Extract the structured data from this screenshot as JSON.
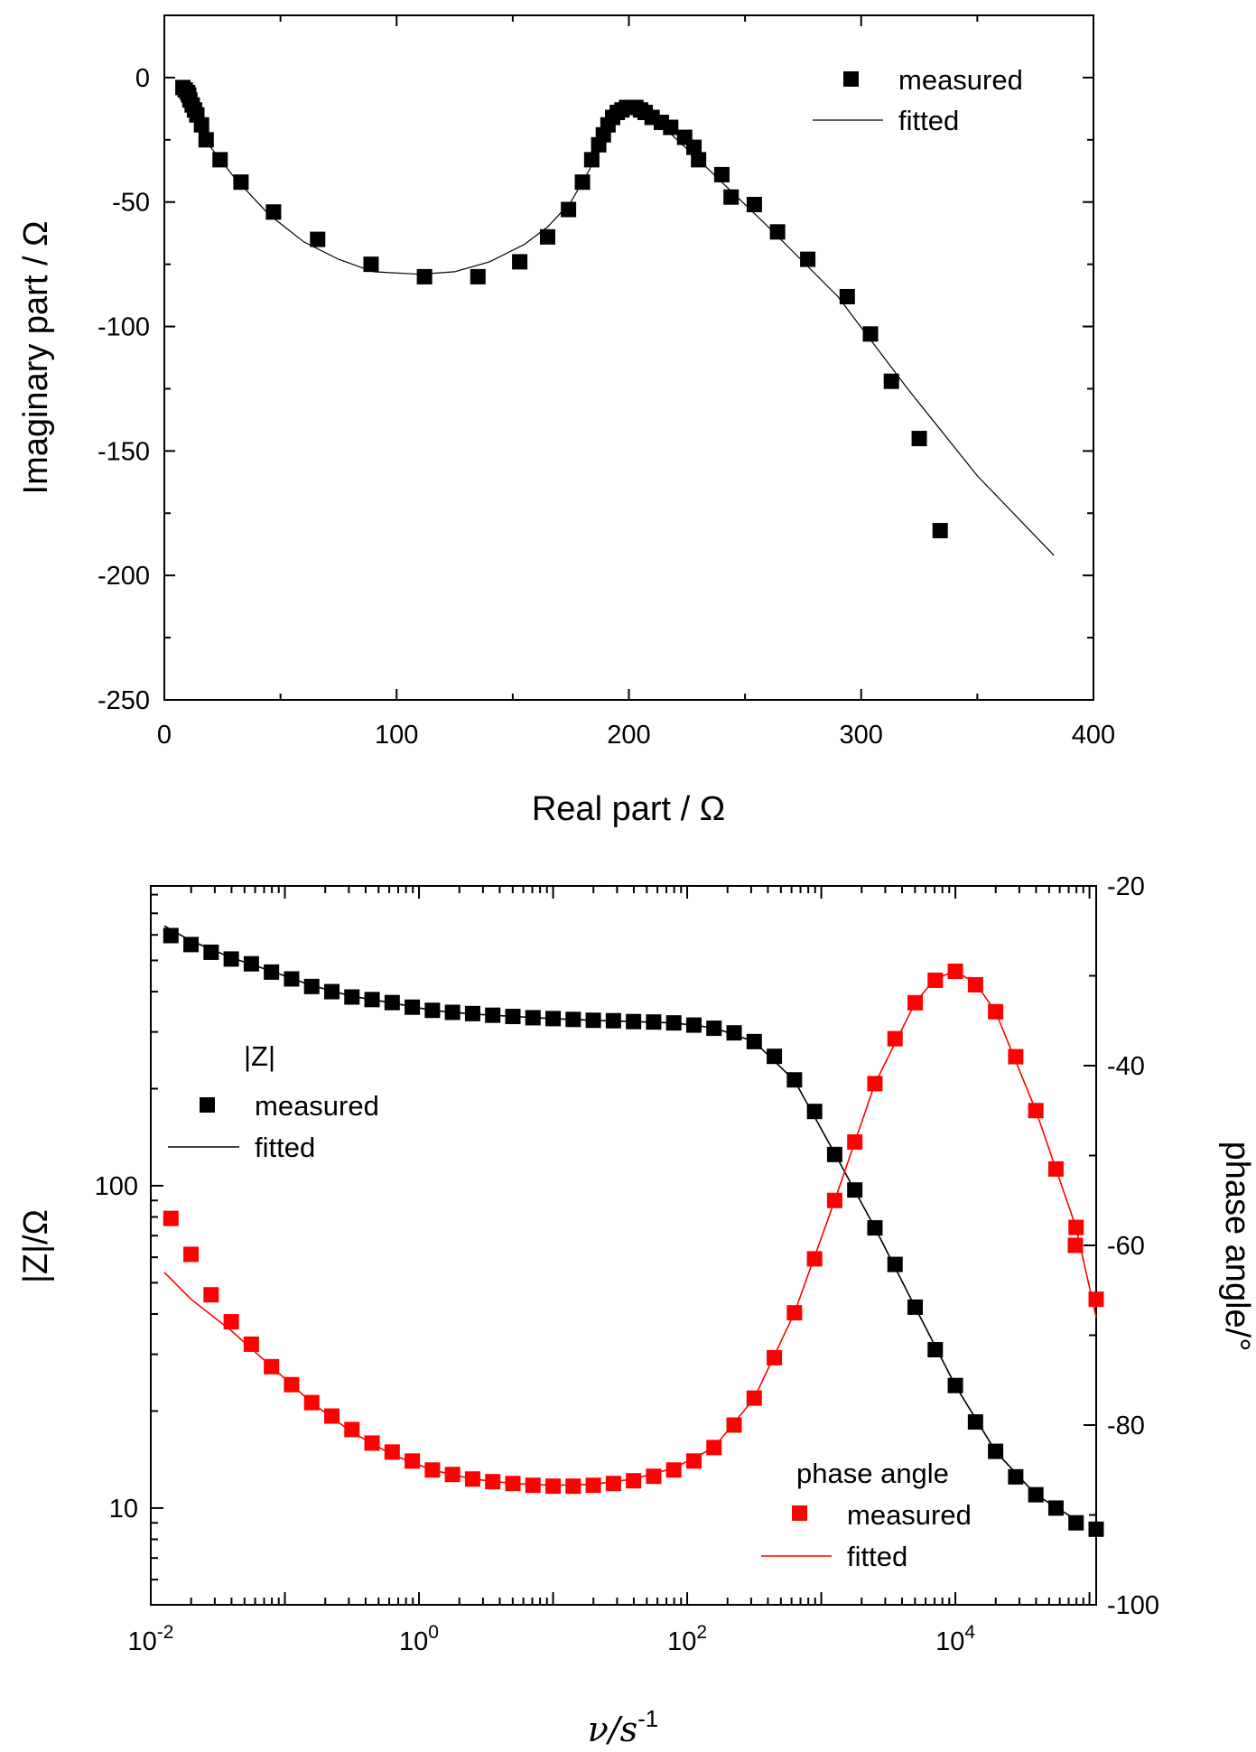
{
  "chart_data": [
    {
      "type": "scatter",
      "name": "nyquist",
      "xlabel": "Real part / Ω",
      "ylabel": "Imaginary part / Ω",
      "xlim": [
        0,
        400
      ],
      "ylim": [
        -250,
        25
      ],
      "xticks": [
        0,
        100,
        200,
        300,
        400
      ],
      "xtick_labels": [
        "0",
        "100",
        "200",
        "300",
        "400"
      ],
      "yticks": [
        0,
        -50,
        -100,
        -150,
        -200,
        -250
      ],
      "ytick_labels": [
        "0",
        "-50",
        "-100",
        "-150",
        "-200",
        "-250"
      ],
      "legend_position": "top-right",
      "legend": {
        "measured": "measured",
        "fitted": "fitted"
      },
      "series": [
        {
          "name": "measured",
          "kind": "markers",
          "color": "#000000",
          "points": [
            [
              8,
              -4
            ],
            [
              9,
              -5
            ],
            [
              10,
              -6
            ],
            [
              10.5,
              -7
            ],
            [
              11,
              -9
            ],
            [
              12,
              -11
            ],
            [
              13,
              -13
            ],
            [
              14,
              -15
            ],
            [
              16,
              -19
            ],
            [
              18,
              -25
            ],
            [
              24,
              -33
            ],
            [
              33,
              -42
            ],
            [
              47,
              -54
            ],
            [
              66,
              -65
            ],
            [
              89,
              -75
            ],
            [
              112,
              -80
            ],
            [
              135,
              -80
            ],
            [
              153,
              -74
            ],
            [
              165,
              -64
            ],
            [
              174,
              -53
            ],
            [
              180,
              -42
            ],
            [
              184,
              -33
            ],
            [
              187,
              -27
            ],
            [
              189,
              -23
            ],
            [
              191,
              -19
            ],
            [
              193,
              -16
            ],
            [
              195,
              -14
            ],
            [
              197,
              -13
            ],
            [
              199,
              -12
            ],
            [
              201,
              -12
            ],
            [
              203,
              -12
            ],
            [
              205,
              -13
            ],
            [
              207,
              -14
            ],
            [
              210,
              -16
            ],
            [
              214,
              -18
            ],
            [
              218,
              -20
            ],
            [
              224,
              -24
            ],
            [
              228,
              -28
            ],
            [
              230,
              -33
            ],
            [
              240,
              -39
            ],
            [
              244,
              -48
            ],
            [
              254,
              -51
            ],
            [
              264,
              -62
            ],
            [
              277,
              -73
            ],
            [
              294,
              -88
            ],
            [
              304,
              -103
            ],
            [
              313,
              -122
            ],
            [
              325,
              -145
            ],
            [
              334,
              -182
            ]
          ]
        },
        {
          "name": "fitted",
          "kind": "line",
          "color": "#000000",
          "points": [
            [
              8,
              -4
            ],
            [
              10,
              -10
            ],
            [
              14,
              -18
            ],
            [
              20,
              -28
            ],
            [
              30,
              -40
            ],
            [
              45,
              -55
            ],
            [
              60,
              -66
            ],
            [
              75,
              -73
            ],
            [
              90,
              -78
            ],
            [
              110,
              -79
            ],
            [
              125,
              -78
            ],
            [
              140,
              -74
            ],
            [
              155,
              -67
            ],
            [
              165,
              -60
            ],
            [
              175,
              -50
            ],
            [
              183,
              -37
            ],
            [
              188,
              -27
            ],
            [
              193,
              -19
            ],
            [
              197,
              -14
            ],
            [
              200,
              -13
            ],
            [
              206,
              -14
            ],
            [
              215,
              -20
            ],
            [
              230,
              -33
            ],
            [
              260,
              -60
            ],
            [
              290,
              -88
            ],
            [
              320,
              -125
            ],
            [
              350,
              -160
            ],
            [
              383,
              -192
            ]
          ]
        }
      ]
    },
    {
      "type": "scatter",
      "name": "bode",
      "xlabel": "ν/s",
      "xlabel_superscript": "-1",
      "ylabel": "|Z|/Ω",
      "y2label": "phase angle/°",
      "x_scale": "log",
      "xlim_log10": [
        -2,
        5.05
      ],
      "y_scale": "log",
      "ylim_log10": [
        0.7,
        2.93
      ],
      "y2lim": [
        -100,
        -20
      ],
      "xticks_log10": [
        -2,
        0,
        2,
        4
      ],
      "xtick_labels": [
        {
          "base": "10",
          "exp": "-2"
        },
        {
          "base": "10",
          "exp": "0"
        },
        {
          "base": "10",
          "exp": "2"
        },
        {
          "base": "10",
          "exp": "4"
        }
      ],
      "yticks_log10": [
        1,
        2
      ],
      "ytick_labels": [
        "10",
        "100"
      ],
      "y2ticks": [
        -20,
        -40,
        -60,
        -80,
        -100
      ],
      "y2tick_labels": [
        "-20",
        "-40",
        "-60",
        "-80",
        "-100"
      ],
      "legend_z": {
        "title": "|Z|",
        "measured": "measured",
        "fitted": "fitted",
        "position": "middle-left"
      },
      "legend_phase": {
        "title": "phase angle",
        "measured": "measured",
        "fitted": "fitted",
        "position": "bottom-right"
      },
      "series": [
        {
          "name": "|Z| measured",
          "axis": "left",
          "kind": "markers",
          "color": "#000000",
          "points_log10x_z": [
            [
              -1.85,
              597
            ],
            [
              -1.7,
              560
            ],
            [
              -1.55,
              530
            ],
            [
              -1.4,
              505
            ],
            [
              -1.25,
              488
            ],
            [
              -1.1,
              460
            ],
            [
              -0.95,
              438
            ],
            [
              -0.8,
              415
            ],
            [
              -0.65,
              400
            ],
            [
              -0.5,
              385
            ],
            [
              -0.35,
              378
            ],
            [
              -0.2,
              370
            ],
            [
              -0.05,
              358
            ],
            [
              0.1,
              350
            ],
            [
              0.25,
              345
            ],
            [
              0.4,
              342
            ],
            [
              0.55,
              338
            ],
            [
              0.7,
              335
            ],
            [
              0.85,
              332
            ],
            [
              1.0,
              330
            ],
            [
              1.15,
              328
            ],
            [
              1.3,
              326
            ],
            [
              1.45,
              325
            ],
            [
              1.6,
              323
            ],
            [
              1.75,
              322
            ],
            [
              1.9,
              320
            ],
            [
              2.05,
              315
            ],
            [
              2.2,
              308
            ],
            [
              2.35,
              298
            ],
            [
              2.5,
              280
            ],
            [
              2.65,
              252
            ],
            [
              2.8,
              213
            ],
            [
              2.95,
              170
            ],
            [
              3.1,
              125
            ],
            [
              3.25,
              97
            ],
            [
              3.4,
              74
            ],
            [
              3.55,
              57
            ],
            [
              3.7,
              42
            ],
            [
              3.85,
              31
            ],
            [
              4.0,
              24
            ],
            [
              4.15,
              18.5
            ],
            [
              4.3,
              15
            ],
            [
              4.45,
              12.5
            ],
            [
              4.6,
              11
            ],
            [
              4.75,
              10
            ],
            [
              4.9,
              9
            ]
          ]
        },
        {
          "name": "|Z| fitted",
          "axis": "left",
          "kind": "line",
          "color": "#000000",
          "points_log10x_z": [
            [
              -1.9,
              640
            ],
            [
              -1.7,
              575
            ],
            [
              -1.4,
              510
            ],
            [
              -1.1,
              463
            ],
            [
              -0.8,
              418
            ],
            [
              -0.5,
              387
            ],
            [
              -0.2,
              369
            ],
            [
              0.1,
              350
            ],
            [
              0.4,
              341
            ],
            [
              0.7,
              335
            ],
            [
              1.0,
              330
            ],
            [
              1.3,
              326
            ],
            [
              1.6,
              323
            ],
            [
              1.9,
              320
            ],
            [
              2.2,
              309
            ],
            [
              2.5,
              280
            ],
            [
              2.8,
              212
            ],
            [
              3.1,
              126
            ],
            [
              3.4,
              74
            ],
            [
              3.7,
              42
            ],
            [
              4.0,
              24
            ],
            [
              4.3,
              15
            ],
            [
              4.6,
              11
            ],
            [
              4.9,
              9.2
            ]
          ]
        },
        {
          "name": "phase measured",
          "axis": "right",
          "kind": "markers",
          "color": "#ff0000",
          "points_log10x_deg": [
            [
              -1.85,
              -57
            ],
            [
              -1.7,
              -61
            ],
            [
              -1.55,
              -65.5
            ],
            [
              -1.4,
              -68.5
            ],
            [
              -1.25,
              -71
            ],
            [
              -1.1,
              -73.5
            ],
            [
              -0.95,
              -75.5
            ],
            [
              -0.8,
              -77.5
            ],
            [
              -0.65,
              -79
            ],
            [
              -0.5,
              -80.5
            ],
            [
              -0.35,
              -82
            ],
            [
              -0.2,
              -83
            ],
            [
              -0.05,
              -84
            ],
            [
              0.1,
              -85
            ],
            [
              0.25,
              -85.5
            ],
            [
              0.4,
              -86
            ],
            [
              0.55,
              -86.3
            ],
            [
              0.7,
              -86.5
            ],
            [
              0.85,
              -86.7
            ],
            [
              1.0,
              -86.8
            ],
            [
              1.15,
              -86.8
            ],
            [
              1.3,
              -86.7
            ],
            [
              1.45,
              -86.5
            ],
            [
              1.6,
              -86.2
            ],
            [
              1.75,
              -85.7
            ],
            [
              1.9,
              -85
            ],
            [
              2.05,
              -84
            ],
            [
              2.2,
              -82.5
            ],
            [
              2.35,
              -80
            ],
            [
              2.5,
              -77
            ],
            [
              2.65,
              -72.5
            ],
            [
              2.8,
              -67.5
            ],
            [
              2.95,
              -61.5
            ],
            [
              3.1,
              -55
            ],
            [
              3.25,
              -48.5
            ],
            [
              3.4,
              -42
            ],
            [
              3.55,
              -37
            ],
            [
              3.7,
              -33
            ],
            [
              3.85,
              -30.5
            ],
            [
              4.0,
              -29.5
            ],
            [
              4.15,
              -31
            ],
            [
              4.3,
              -34
            ],
            [
              4.45,
              -39
            ],
            [
              4.6,
              -45
            ],
            [
              4.75,
              -51.5
            ],
            [
              4.9,
              -58
            ]
          ]
        },
        {
          "name": "phase fitted",
          "axis": "right",
          "kind": "line",
          "color": "#ff0000",
          "points_log10x_deg": [
            [
              -1.9,
              -63
            ],
            [
              -1.7,
              -66
            ],
            [
              -1.4,
              -69.5
            ],
            [
              -1.1,
              -73.5
            ],
            [
              -0.8,
              -77.5
            ],
            [
              -0.5,
              -80.8
            ],
            [
              -0.2,
              -83.3
            ],
            [
              0.1,
              -85
            ],
            [
              0.4,
              -86
            ],
            [
              0.7,
              -86.5
            ],
            [
              1.0,
              -86.7
            ],
            [
              1.3,
              -86.6
            ],
            [
              1.6,
              -86
            ],
            [
              1.9,
              -84.8
            ],
            [
              2.2,
              -82.5
            ],
            [
              2.5,
              -77
            ],
            [
              2.8,
              -67.5
            ],
            [
              3.1,
              -55
            ],
            [
              3.4,
              -42
            ],
            [
              3.7,
              -33
            ],
            [
              3.85,
              -30.3
            ],
            [
              4.0,
              -29.5
            ],
            [
              4.15,
              -30.8
            ],
            [
              4.3,
              -34
            ],
            [
              4.6,
              -45
            ],
            [
              4.9,
              -58
            ],
            [
              5.05,
              -68
            ]
          ]
        },
        {
          "name": "phase measured (overflow)",
          "axis": "right",
          "kind": "markers",
          "color": "#ff0000",
          "points_log10x_deg": [
            [
              5.05,
              -60
            ],
            [
              5.2,
              -66
            ]
          ],
          "note_hidden": true
        }
      ]
    }
  ]
}
